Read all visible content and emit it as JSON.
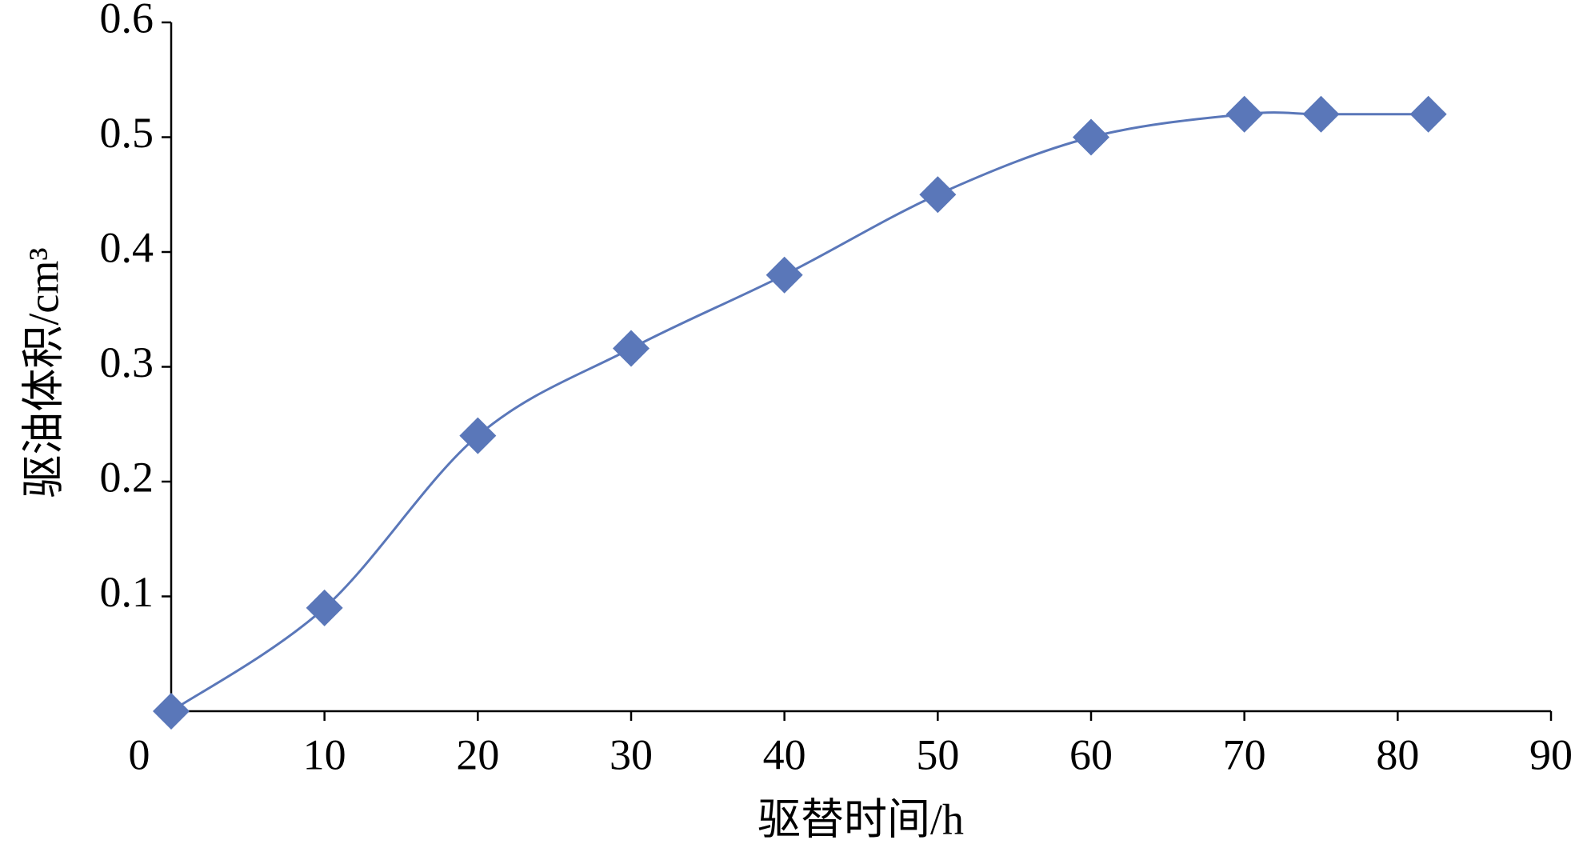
{
  "chart_data": {
    "type": "line",
    "x_label": "驱替时间/h",
    "y_label": "驱油体积/cm³",
    "series": [
      {
        "name": "驱油体积",
        "color": "#5a77b9",
        "x": [
          0,
          10,
          20,
          30,
          40,
          50,
          60,
          70,
          75,
          82
        ],
        "values": [
          0,
          0.09,
          0.24,
          0.316,
          0.38,
          0.45,
          0.5,
          0.52,
          0.52,
          0.52
        ]
      }
    ],
    "xlim": [
      0,
      90
    ],
    "xticks": [
      0,
      10,
      20,
      30,
      40,
      50,
      60,
      70,
      80,
      90
    ],
    "ylim": [
      0,
      0.6
    ],
    "yticks": [
      0.1,
      0.2,
      0.3,
      0.4,
      0.5,
      0.6
    ],
    "marker": "diamond",
    "smooth": true,
    "grid": false
  }
}
